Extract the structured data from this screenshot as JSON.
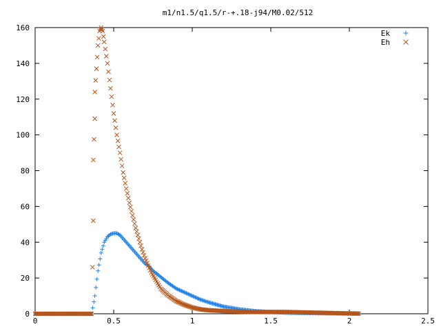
{
  "chart_data": {
    "type": "scatter",
    "title": "m1/n1.5/q1.5/r-+.18-j94/M0.02/512",
    "xlabel": "",
    "ylabel": "",
    "xlim": [
      0,
      2.5
    ],
    "ylim": [
      0,
      160
    ],
    "xticks": [
      "0",
      "0.5",
      "1",
      "1.5",
      "2",
      "2.5"
    ],
    "yticks": [
      "0",
      "20",
      "40",
      "60",
      "80",
      "100",
      "120",
      "140",
      "160"
    ],
    "grid": false,
    "legend_position": "top-right",
    "series": [
      {
        "name": "Ek",
        "marker": "plus",
        "color": "#1f82e6",
        "x": [
          0.0,
          0.1,
          0.2,
          0.3,
          0.36,
          0.38,
          0.4,
          0.42,
          0.44,
          0.46,
          0.48,
          0.5,
          0.52,
          0.54,
          0.56,
          0.58,
          0.6,
          0.62,
          0.64,
          0.66,
          0.68,
          0.7,
          0.72,
          0.75,
          0.78,
          0.8,
          0.85,
          0.9,
          0.95,
          1.0,
          1.05,
          1.1,
          1.2,
          1.3,
          1.4,
          1.5,
          1.6,
          1.7,
          1.8,
          1.9,
          2.0,
          2.06
        ],
        "y": [
          0,
          0,
          0,
          0,
          0,
          10,
          24,
          34,
          40,
          43,
          44.5,
          45,
          45,
          44,
          42,
          40,
          38,
          36,
          34,
          32,
          30,
          28,
          27,
          24,
          22,
          20.5,
          17,
          14,
          12,
          10,
          8,
          6.5,
          4,
          2.5,
          1.5,
          1,
          0.6,
          0.4,
          0.3,
          0.2,
          0.1,
          0.1
        ]
      },
      {
        "name": "Eh",
        "marker": "cross",
        "color": "#b5561d",
        "x": [
          0.0,
          0.1,
          0.2,
          0.3,
          0.36,
          0.37,
          0.37,
          0.38,
          0.38,
          0.39,
          0.4,
          0.41,
          0.42,
          0.43,
          0.44,
          0.46,
          0.48,
          0.5,
          0.52,
          0.54,
          0.56,
          0.58,
          0.6,
          0.62,
          0.64,
          0.66,
          0.68,
          0.7,
          0.72,
          0.74,
          0.76,
          0.78,
          0.8,
          0.85,
          0.9,
          0.95,
          1.0,
          1.05,
          1.1,
          1.2,
          1.3,
          1.4,
          1.5,
          1.6,
          1.7,
          1.8,
          1.9,
          2.0,
          2.06
        ],
        "y": [
          0,
          0,
          0,
          0,
          0,
          52,
          86,
          109,
          124,
          137,
          150,
          158,
          160,
          158,
          152,
          140,
          126,
          112,
          100,
          90,
          79,
          70,
          62,
          55,
          48,
          42,
          36,
          31,
          27,
          23,
          20,
          17,
          14,
          10,
          7,
          5,
          3.5,
          2.5,
          2,
          1.5,
          1.2,
          1,
          1,
          1,
          0.8,
          0.6,
          0.4,
          0.2,
          0.1
        ]
      }
    ]
  }
}
